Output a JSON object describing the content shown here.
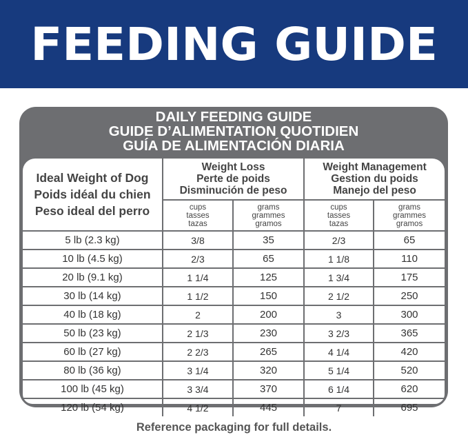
{
  "banner": {
    "title": "FEEDING GUIDE",
    "color": "#173a7e"
  },
  "guide": {
    "titles": [
      "DAILY FEEDING GUIDE",
      "GUIDE D’ALIMENTATION QUOTIDIEN",
      "GUÍA DE ALIMENTACIÓN DIARIA"
    ],
    "weight_header": [
      "Ideal Weight of Dog",
      "Poids idéal du chien",
      "Peso ideal del perro"
    ],
    "groups": [
      {
        "lines": [
          "Weight Loss",
          "Perte de poids",
          "Disminución de peso"
        ]
      },
      {
        "lines": [
          "Weight Management",
          "Gestion du poids",
          "Manejo del peso"
        ]
      }
    ],
    "units": {
      "cups": [
        "cups",
        "tasses",
        "tazas"
      ],
      "grams": [
        "grams",
        "grammes",
        "gramos"
      ]
    },
    "rows": [
      [
        "5 lb (2.3 kg)",
        "3/8",
        "35",
        "2/3",
        "65"
      ],
      [
        "10 lb (4.5 kg)",
        "2/3",
        "65",
        "1 1/8",
        "110"
      ],
      [
        "20 lb (9.1 kg)",
        "1 1/4",
        "125",
        "1 3/4",
        "175"
      ],
      [
        "30 lb (14 kg)",
        "1 1/2",
        "150",
        "2 1/2",
        "250"
      ],
      [
        "40 lb (18 kg)",
        "2",
        "200",
        "3",
        "300"
      ],
      [
        "50 lb (23 kg)",
        "2 1/3",
        "230",
        "3 2/3",
        "365"
      ],
      [
        "60 lb (27 kg)",
        "2 2/3",
        "265",
        "4 1/4",
        "420"
      ],
      [
        "80 lb (36 kg)",
        "3 1/4",
        "320",
        "5 1/4",
        "520"
      ],
      [
        "100 lb (45 kg)",
        "3 3/4",
        "370",
        "6 1/4",
        "620"
      ],
      [
        "120 lb (54 kg)",
        "4 1/2",
        "445",
        "7",
        "695"
      ]
    ]
  },
  "footer": "Reference packaging for full details."
}
